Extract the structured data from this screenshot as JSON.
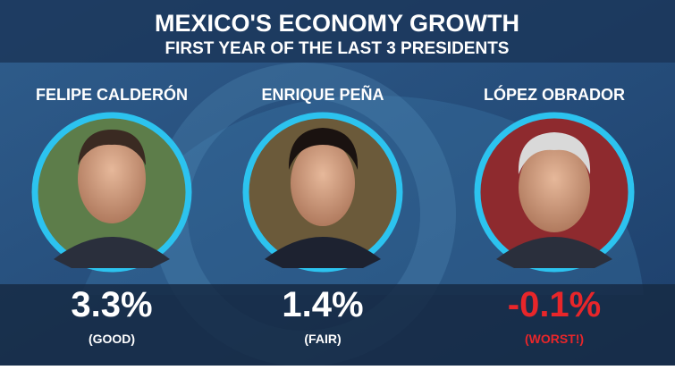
{
  "header": {
    "title": "MEXICO'S ECONOMY GROWTH",
    "subtitle": "FIRST YEAR OF THE LAST 3 PRESIDENTS"
  },
  "presidents": [
    {
      "name": "FELIPE CALDERÓN",
      "growth": "3.3%",
      "rating": "(GOOD)"
    },
    {
      "name": "ENRIQUE PEÑA",
      "growth": "1.4%",
      "rating": "(FAIR)"
    },
    {
      "name": "LÓPEZ OBRADOR",
      "growth": "-0.1%",
      "rating": "(WORST!)"
    }
  ]
}
